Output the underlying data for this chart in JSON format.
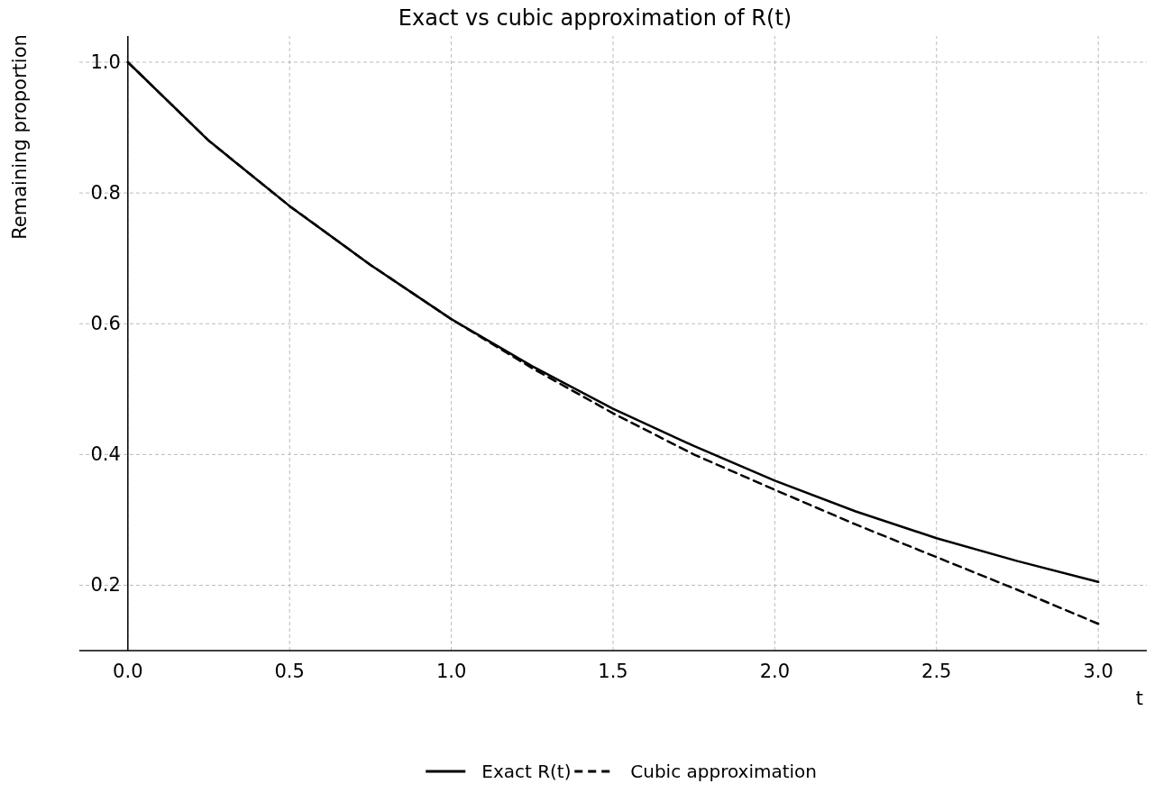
{
  "chart_data": {
    "type": "line",
    "title": "Exact vs cubic approximation of R(t)",
    "xlabel": "t",
    "ylabel": "Remaining proportion",
    "x": [
      0,
      0.25,
      0.5,
      0.75,
      1,
      1.25,
      1.5,
      1.75,
      2,
      2.25,
      2.5,
      2.75,
      3
    ],
    "series": [
      {
        "name": "Exact R(t)",
        "color": "#000000",
        "line_style": "solid",
        "values": [
          1.0,
          0.88,
          0.78,
          0.69,
          0.607,
          0.535,
          0.47,
          0.413,
          0.36,
          0.313,
          0.272,
          0.237,
          0.205
        ]
      },
      {
        "name": "Cubic approximation",
        "color": "#000000",
        "line_style": "dashed",
        "values": [
          1.0,
          0.88,
          0.78,
          0.69,
          0.607,
          0.532,
          0.463,
          0.4,
          0.346,
          0.293,
          0.243,
          0.193,
          0.141
        ]
      }
    ],
    "xlim": [
      -0.15,
      3.15
    ],
    "ylim": [
      0.1,
      1.04
    ],
    "xticks": [
      {
        "value": 0,
        "label": "0.0"
      },
      0.5,
      {
        "value": 1,
        "label": "1.0"
      },
      1.5,
      {
        "value": 2,
        "label": "2.0"
      },
      2.5,
      {
        "value": 3,
        "label": "3.0"
      }
    ],
    "yticks": [
      0.2,
      0.4,
      0.6,
      0.8,
      {
        "value": 1,
        "label": "1.0"
      }
    ],
    "grid": true,
    "legend": "bottom",
    "marker": "none"
  }
}
